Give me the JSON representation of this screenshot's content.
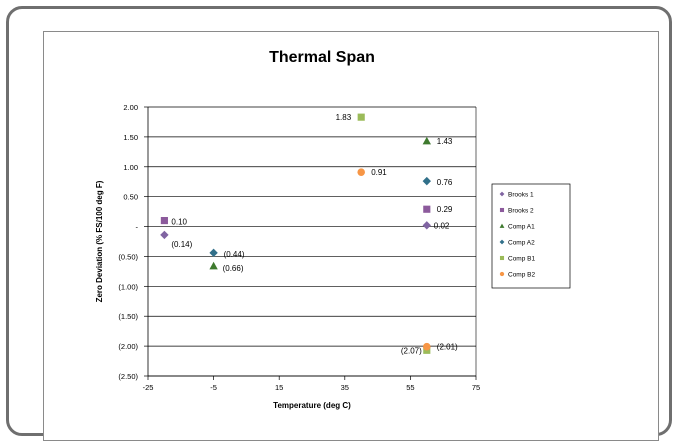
{
  "chart_data": {
    "type": "scatter",
    "title": "Thermal Span",
    "xlabel": "Temperature (deg C)",
    "ylabel": "Zero Deviation (% FS/100 deg F)",
    "xlim": [
      -25,
      75
    ],
    "ylim": [
      -2.5,
      2.0
    ],
    "x_ticks": [
      -25,
      -5,
      15,
      35,
      55,
      75
    ],
    "x_tick_labels": [
      "-25",
      "-5",
      "15",
      "35",
      "55",
      "75"
    ],
    "y_ticks": [
      2.0,
      1.5,
      1.0,
      0.5,
      0.0,
      -0.5,
      -1.0,
      -1.5,
      -2.0,
      -2.5
    ],
    "y_tick_labels": [
      "2.00",
      "1.50",
      "1.00",
      "0.50",
      "-",
      "(0.50)",
      "(1.00)",
      "(1.50)",
      "(2.00)",
      "(2.50)"
    ],
    "grid": "horizontal",
    "legend_position": "right",
    "series": [
      {
        "name": "Brooks 1",
        "marker": "diamond",
        "color": "#8064a2",
        "points": [
          {
            "x": -20,
            "y": -0.14,
            "label": "(0.14)"
          },
          {
            "x": 60,
            "y": 0.02,
            "label": "0.02"
          }
        ]
      },
      {
        "name": "Brooks 2",
        "marker": "square",
        "color": "#8c5a9c",
        "points": [
          {
            "x": -20,
            "y": 0.1,
            "label": "0.10"
          },
          {
            "x": 60,
            "y": 0.29,
            "label": "0.29"
          }
        ]
      },
      {
        "name": "Comp A1",
        "marker": "triangle",
        "color": "#3e7a2e",
        "points": [
          {
            "x": -5,
            "y": -0.66,
            "label": "(0.66)"
          },
          {
            "x": 60,
            "y": 1.43,
            "label": "1.43"
          }
        ]
      },
      {
        "name": "Comp A2",
        "marker": "diamond",
        "color": "#31708a",
        "points": [
          {
            "x": -5,
            "y": -0.44,
            "label": "(0.44)"
          },
          {
            "x": 60,
            "y": 0.76,
            "label": "0.76"
          }
        ]
      },
      {
        "name": "Comp B1",
        "marker": "square",
        "color": "#9bbb59",
        "points": [
          {
            "x": 40,
            "y": 1.83,
            "label": "1.83"
          },
          {
            "x": 60,
            "y": -2.07,
            "label": "(2.07)"
          }
        ]
      },
      {
        "name": "Comp B2",
        "marker": "circle",
        "color": "#f79646",
        "points": [
          {
            "x": 40,
            "y": 0.91,
            "label": "0.91"
          },
          {
            "x": 60,
            "y": -2.01,
            "label": "(2.01)"
          }
        ]
      }
    ]
  }
}
